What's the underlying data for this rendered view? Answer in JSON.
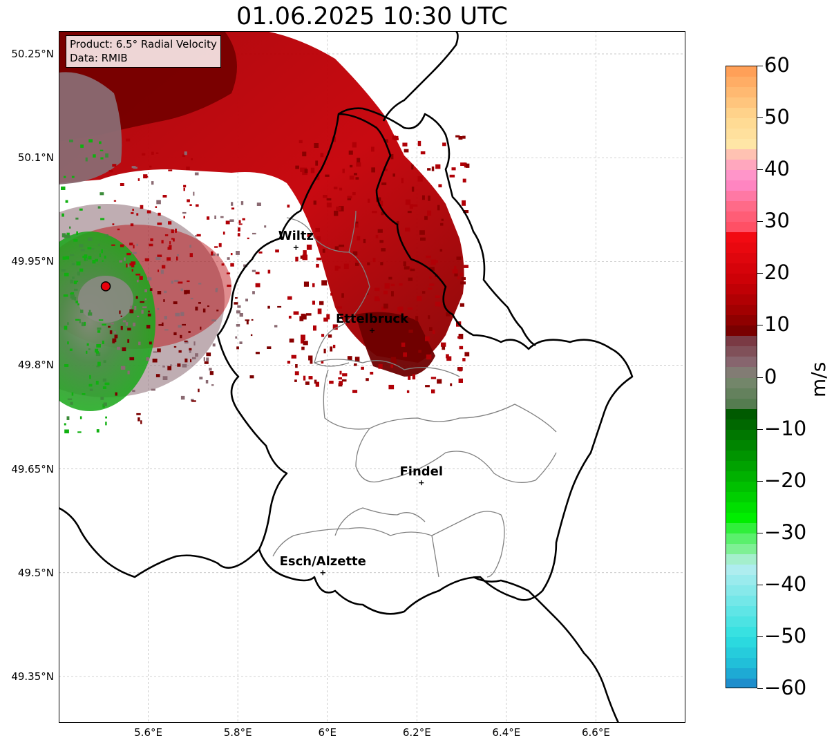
{
  "title": "01.06.2025 10:30 UTC",
  "info_box": {
    "product": "Product: 6.5° Radial Velocity",
    "source": "Data: RMIB"
  },
  "map_extent": {
    "lon_min": 5.4,
    "lon_max": 6.8,
    "lat_min": 49.283,
    "lat_max": 50.283
  },
  "lat_ticks": [
    {
      "value": 50.25,
      "label": "50.25°N"
    },
    {
      "value": 50.1,
      "label": "50.1°N"
    },
    {
      "value": 49.95,
      "label": "49.95°N"
    },
    {
      "value": 49.8,
      "label": "49.8°N"
    },
    {
      "value": 49.65,
      "label": "49.65°N"
    },
    {
      "value": 49.5,
      "label": "49.5°N"
    },
    {
      "value": 49.35,
      "label": "49.35°N"
    }
  ],
  "lon_ticks": [
    {
      "value": 5.6,
      "label": "5.6°E"
    },
    {
      "value": 5.8,
      "label": "5.8°E"
    },
    {
      "value": 6.0,
      "label": "6°E"
    },
    {
      "value": 6.2,
      "label": "6.2°E"
    },
    {
      "value": 6.4,
      "label": "6.4°E"
    },
    {
      "value": 6.6,
      "label": "6.6°E"
    }
  ],
  "cities": [
    {
      "name": "Wiltz",
      "lon": 5.93,
      "lat": 49.97
    },
    {
      "name": "Ettelbruck",
      "lon": 6.1,
      "lat": 49.85
    },
    {
      "name": "Findel",
      "lon": 6.21,
      "lat": 49.63
    },
    {
      "name": "Esch/Alzette",
      "lon": 5.99,
      "lat": 49.5
    }
  ],
  "radar_site": {
    "lon": 5.505,
    "lat": 49.914,
    "color": "#e8000b"
  },
  "colorbar": {
    "unit": "m/s",
    "min": -60,
    "max": 60,
    "ticks": [
      {
        "value": 60,
        "label": "60"
      },
      {
        "value": 50,
        "label": "50"
      },
      {
        "value": 40,
        "label": "40"
      },
      {
        "value": 30,
        "label": "30"
      },
      {
        "value": 20,
        "label": "20"
      },
      {
        "value": 10,
        "label": "10"
      },
      {
        "value": 0,
        "label": "0"
      },
      {
        "value": -10,
        "label": "−10"
      },
      {
        "value": -20,
        "label": "−20"
      },
      {
        "value": -30,
        "label": "−30"
      },
      {
        "value": -40,
        "label": "−40"
      },
      {
        "value": -50,
        "label": "−50"
      },
      {
        "value": -60,
        "label": "−60"
      }
    ],
    "stops": [
      {
        "value": 60,
        "color": "#ff9a52"
      },
      {
        "value": 50,
        "color": "#ffd890"
      },
      {
        "value": 45,
        "color": "#ffe6a6"
      },
      {
        "value": 42,
        "color": "#ffb0b8"
      },
      {
        "value": 38,
        "color": "#ff8ccf"
      },
      {
        "value": 33,
        "color": "#ff6a88"
      },
      {
        "value": 28,
        "color": "#ff4a5c"
      },
      {
        "value": 27,
        "color": "#f20a12"
      },
      {
        "value": 18,
        "color": "#c80006"
      },
      {
        "value": 12,
        "color": "#9a0000"
      },
      {
        "value": 8,
        "color": "#6e0000"
      },
      {
        "value": 7,
        "color": "#7a3a44"
      },
      {
        "value": 2,
        "color": "#8a7078"
      },
      {
        "value": 0,
        "color": "#7a8870"
      },
      {
        "value": -6,
        "color": "#4e7a4a"
      },
      {
        "value": -7,
        "color": "#005a00"
      },
      {
        "value": -20,
        "color": "#00b800"
      },
      {
        "value": -27,
        "color": "#00ee00"
      },
      {
        "value": -30,
        "color": "#48f058"
      },
      {
        "value": -34,
        "color": "#90f0a8"
      },
      {
        "value": -36,
        "color": "#b8eef0"
      },
      {
        "value": -50,
        "color": "#2ee0e0"
      },
      {
        "value": -56,
        "color": "#1eb8d8"
      },
      {
        "value": -60,
        "color": "#1e80c8"
      }
    ]
  }
}
